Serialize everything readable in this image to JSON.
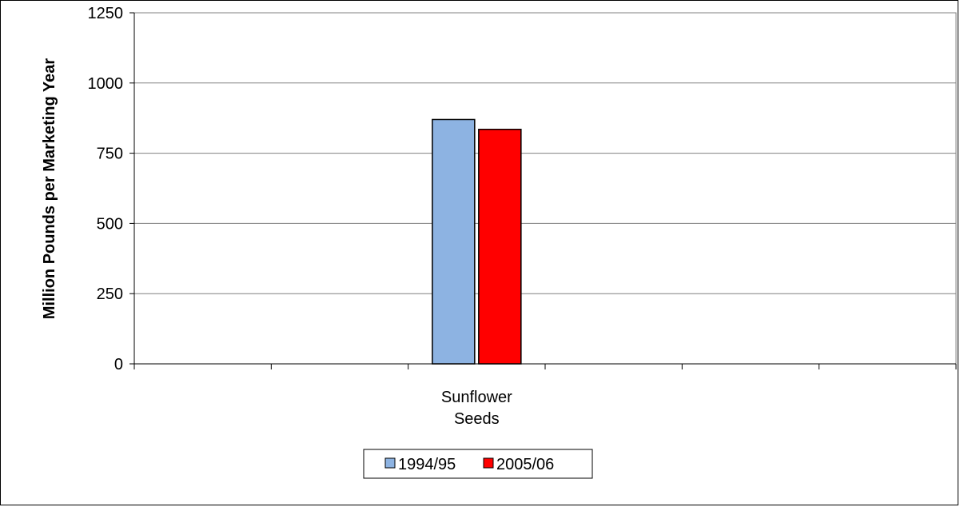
{
  "chart_data": {
    "type": "bar",
    "title": "",
    "xlabel": "",
    "ylabel": "Million Pounds per Marketing Year",
    "categories": [
      "Sunflower\nSeeds"
    ],
    "category_slots": 6,
    "category_slot_index": 2,
    "series": [
      {
        "name": "1994/95",
        "values": [
          870
        ],
        "color": "#8db3e2"
      },
      {
        "name": "2005/06",
        "values": [
          835
        ],
        "color": "#ff0000"
      }
    ],
    "ylim": [
      0,
      1250
    ],
    "yticks": [
      0,
      250,
      500,
      750,
      1000,
      1250
    ],
    "grid": true,
    "legend": "bottom"
  }
}
